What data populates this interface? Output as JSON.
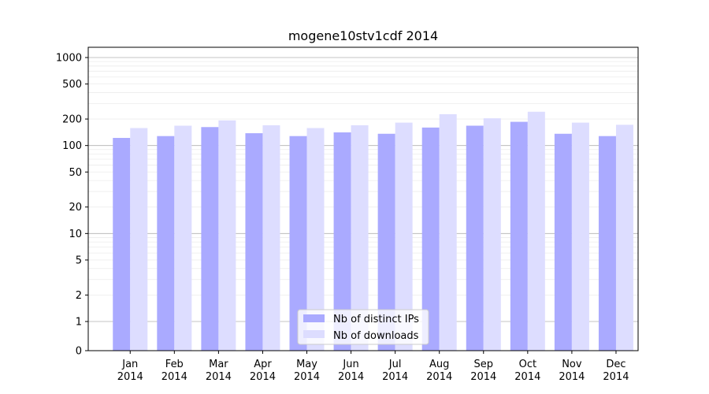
{
  "chart_data": {
    "type": "bar",
    "title": "mogene10stv1cdf 2014",
    "xlabel": "",
    "ylabel": "",
    "scale": "symlog",
    "categories": [
      [
        "Jan",
        "2014"
      ],
      [
        "Feb",
        "2014"
      ],
      [
        "Mar",
        "2014"
      ],
      [
        "Apr",
        "2014"
      ],
      [
        "May",
        "2014"
      ],
      [
        "Jun",
        "2014"
      ],
      [
        "Jul",
        "2014"
      ],
      [
        "Aug",
        "2014"
      ],
      [
        "Sep",
        "2014"
      ],
      [
        "Oct",
        "2014"
      ],
      [
        "Nov",
        "2014"
      ],
      [
        "Dec",
        "2014"
      ]
    ],
    "series": [
      {
        "name": "Nb of distinct IPs",
        "color": "#aaaaff",
        "values": [
          122,
          128,
          162,
          138,
          128,
          141,
          136,
          160,
          168,
          186,
          136,
          128
        ]
      },
      {
        "name": "Nb of downloads",
        "color": "#ddddff",
        "values": [
          158,
          168,
          193,
          170,
          158,
          170,
          182,
          227,
          204,
          242,
          182,
          172
        ]
      }
    ],
    "yticks": [
      0,
      1,
      2,
      5,
      10,
      20,
      50,
      100,
      200,
      500,
      1000
    ],
    "ylim": [
      0,
      1400
    ],
    "grid": true,
    "legend": "bottom-center"
  }
}
